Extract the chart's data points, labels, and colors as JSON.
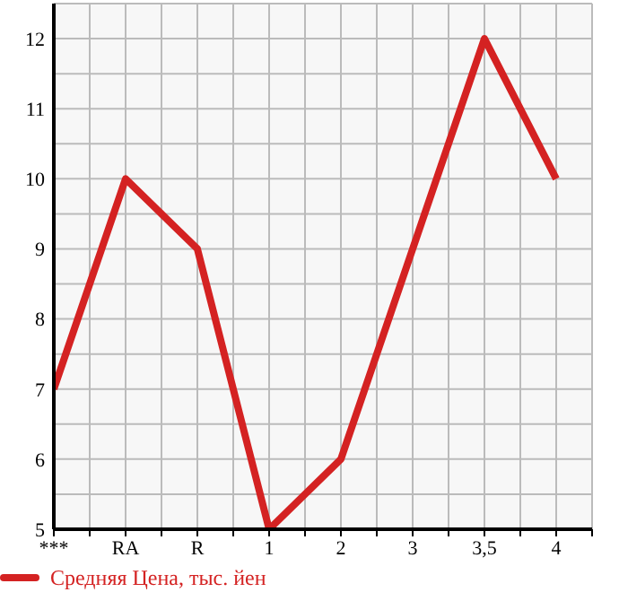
{
  "chart_data": {
    "type": "line",
    "categories": [
      "***",
      "RA",
      "R",
      "1",
      "2",
      "3",
      "3,5",
      "4"
    ],
    "series": [
      {
        "name": "Средняя Цена, тыс. йен",
        "color": "#d42222",
        "values": [
          7,
          10,
          9,
          5,
          6,
          9,
          12,
          10
        ]
      }
    ],
    "ylim": [
      5,
      12.5
    ],
    "yticks": [
      5,
      {
        "value": 5.5,
        "label": null
      },
      6,
      {
        "value": 6.5,
        "label": null
      },
      7,
      {
        "value": 7.5,
        "label": null
      },
      8,
      {
        "value": 8.5,
        "label": null
      },
      9,
      {
        "value": 9.5,
        "label": null
      },
      10,
      {
        "value": 10.5,
        "label": null
      },
      11,
      {
        "value": 11.5,
        "label": null
      },
      12,
      {
        "value": 12.5,
        "label": null
      }
    ],
    "grid": true,
    "legend": "bottom left",
    "marker": "none",
    "line_style": "solid"
  }
}
